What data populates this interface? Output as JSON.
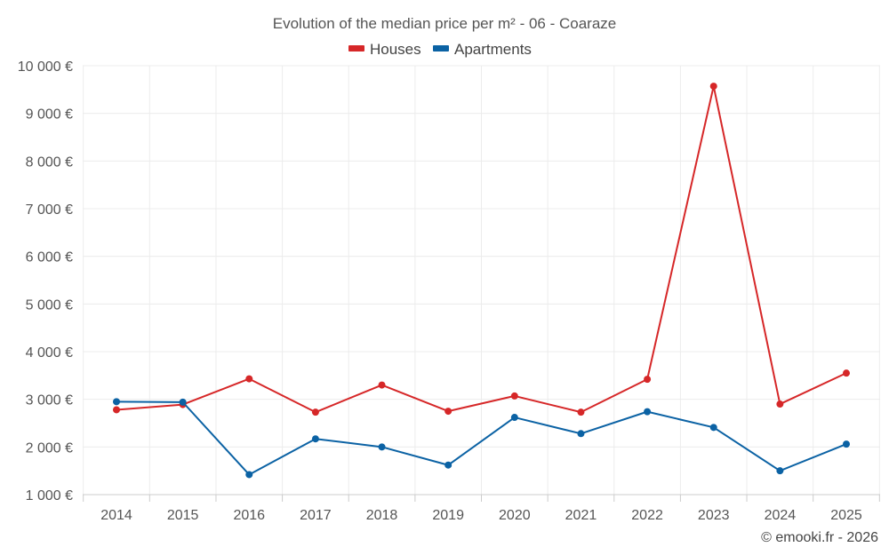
{
  "chart_data": {
    "type": "line",
    "title": "Evolution of the median price per m² - 06 - Coaraze",
    "categories": [
      "2014",
      "2015",
      "2016",
      "2017",
      "2018",
      "2019",
      "2020",
      "2021",
      "2022",
      "2023",
      "2024",
      "2025"
    ],
    "series": [
      {
        "name": "Houses",
        "color": "#d62728",
        "values": [
          2780,
          2890,
          3430,
          2730,
          3300,
          2750,
          3070,
          2730,
          3420,
          9570,
          2900,
          3550
        ]
      },
      {
        "name": "Apartments",
        "color": "#0b62a4",
        "values": [
          2950,
          2940,
          1420,
          2170,
          2000,
          1620,
          2620,
          2280,
          2740,
          2410,
          1500,
          2060
        ]
      }
    ],
    "ylim": [
      1000,
      10000
    ],
    "yticks": [
      1000,
      2000,
      3000,
      4000,
      5000,
      6000,
      7000,
      8000,
      9000,
      10000
    ],
    "ytick_labels": [
      "1 000 €",
      "2 000 €",
      "3 000 €",
      "4 000 €",
      "5 000 €",
      "6 000 €",
      "7 000 €",
      "8 000 €",
      "9 000 €",
      "10 000 €"
    ],
    "xlabel": "",
    "ylabel": "",
    "grid": true,
    "legend_position": "top-center"
  },
  "credit": "© emooki.fr - 2026"
}
